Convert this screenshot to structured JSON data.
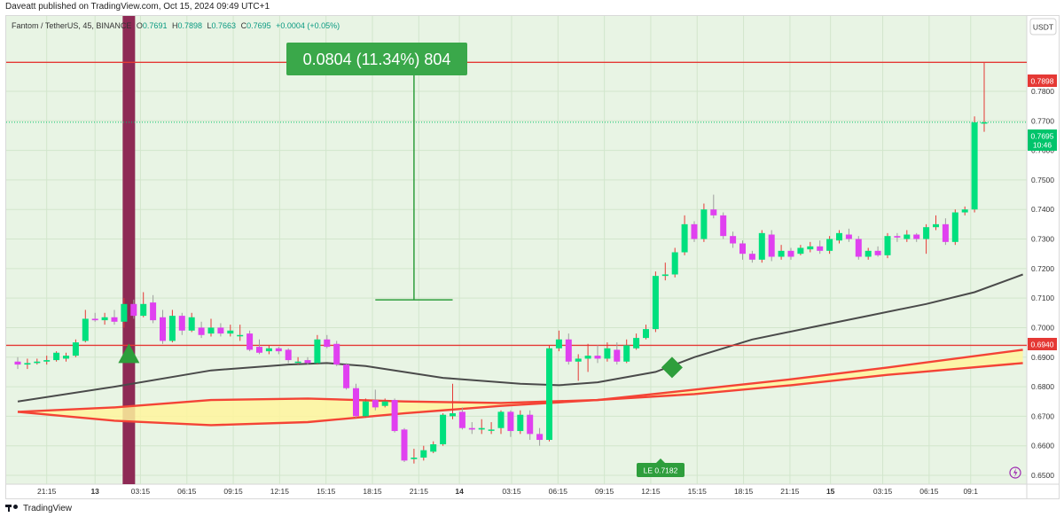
{
  "publisher_line": "Daveatt published on TradingView.com, Oct 15, 2024 09:49 UTC+1",
  "footer_brand": "TradingView",
  "header": {
    "symbol": "Fantom / TetherUS, 45, BINANCE",
    "o_label": "O",
    "o_value": "0.7691",
    "h_label": "H",
    "h_value": "0.7898",
    "l_label": "L",
    "l_value": "0.7663",
    "c_label": "C",
    "c_value": "0.7695",
    "change": "+0.0004 (+0.05%)"
  },
  "currency_label": "USDT",
  "measure_label": "0.0804 (11.34%) 804",
  "le_label": "LE 0.7182",
  "price_tags": {
    "top_line": "0.7898",
    "last_price": "0.7695",
    "countdown": "10:46",
    "bottom_line": "0.6940"
  },
  "colors": {
    "background": "#e8f4e4",
    "up": "#00e07e",
    "down": "#e040f0",
    "level_line": "#e53935",
    "ma_line": "#4a4a4a",
    "band_upper": "#f44336",
    "band_fill": "#fff59d",
    "measure": "#2e9e3c",
    "vertical_highlight": "#8e2a55",
    "signal": "#2e9e3c"
  },
  "chart_data": {
    "type": "candlestick",
    "timeframe": "45",
    "ylim": [
      0.647,
      0.8055
    ],
    "y_ticks": [
      "0.6500",
      "0.6600",
      "0.6700",
      "0.6800",
      "0.6900",
      "0.7000",
      "0.7100",
      "0.7200",
      "0.7300",
      "0.7400",
      "0.7500",
      "0.7600",
      "0.7700",
      "0.7800"
    ],
    "x_ticks": [
      "21:15",
      "13",
      "03:15",
      "06:15",
      "09:15",
      "12:15",
      "15:15",
      "18:15",
      "21:15",
      "14",
      "03:15",
      "06:15",
      "09:15",
      "12:15",
      "15:15",
      "18:15",
      "21:15",
      "15",
      "03:15",
      "06:15",
      "09:1"
    ],
    "x_tick_bars": [
      3,
      8,
      12.7,
      17.5,
      22.3,
      27.1,
      31.9,
      36.7,
      41.5,
      45.7,
      51.1,
      55.9,
      60.7,
      65.5,
      70.3,
      75.1,
      79.9,
      84.1,
      89.5,
      94.3,
      98.6
    ],
    "candles": [
      [
        0.6885,
        0.6875,
        0.69,
        0.686
      ],
      [
        0.6875,
        0.688,
        0.6895,
        0.686
      ],
      [
        0.688,
        0.6885,
        0.6895,
        0.6875
      ],
      [
        0.6885,
        0.689,
        0.6905,
        0.6875
      ],
      [
        0.689,
        0.6915,
        0.692,
        0.6885
      ],
      [
        0.6895,
        0.6905,
        0.6915,
        0.6885
      ],
      [
        0.6905,
        0.695,
        0.696,
        0.69
      ],
      [
        0.6955,
        0.703,
        0.706,
        0.695
      ],
      [
        0.703,
        0.7025,
        0.705,
        0.702
      ],
      [
        0.7025,
        0.7035,
        0.705,
        0.701
      ],
      [
        0.7035,
        0.702,
        0.706,
        0.701
      ],
      [
        0.702,
        0.708,
        0.71,
        0.7
      ],
      [
        0.708,
        0.704,
        0.7095,
        0.703
      ],
      [
        0.704,
        0.708,
        0.712,
        0.7035
      ],
      [
        0.7085,
        0.7025,
        0.711,
        0.7015
      ],
      [
        0.7035,
        0.6955,
        0.706,
        0.6945
      ],
      [
        0.6955,
        0.704,
        0.706,
        0.695
      ],
      [
        0.704,
        0.699,
        0.705,
        0.6975
      ],
      [
        0.699,
        0.7035,
        0.705,
        0.6985
      ],
      [
        0.7,
        0.6975,
        0.702,
        0.6965
      ],
      [
        0.698,
        0.7,
        0.703,
        0.697
      ],
      [
        0.7,
        0.698,
        0.7015,
        0.697
      ],
      [
        0.698,
        0.699,
        0.701,
        0.697
      ],
      [
        0.6975,
        0.6975,
        0.701,
        0.6955
      ],
      [
        0.698,
        0.6925,
        0.699,
        0.692
      ],
      [
        0.6935,
        0.6915,
        0.696,
        0.691
      ],
      [
        0.692,
        0.693,
        0.694,
        0.691
      ],
      [
        0.693,
        0.692,
        0.6935,
        0.691
      ],
      [
        0.6925,
        0.689,
        0.693,
        0.688
      ],
      [
        0.6885,
        0.6885,
        0.69,
        0.6875
      ],
      [
        0.689,
        0.688,
        0.69,
        0.6875
      ],
      [
        0.688,
        0.696,
        0.6975,
        0.6875
      ],
      [
        0.696,
        0.6935,
        0.6975,
        0.693
      ],
      [
        0.6945,
        0.6875,
        0.6955,
        0.687
      ],
      [
        0.6875,
        0.6795,
        0.688,
        0.679
      ],
      [
        0.6795,
        0.67,
        0.681,
        0.6695
      ],
      [
        0.67,
        0.675,
        0.676,
        0.6695
      ],
      [
        0.6755,
        0.673,
        0.679,
        0.672
      ],
      [
        0.6735,
        0.675,
        0.676,
        0.673
      ],
      [
        0.6755,
        0.665,
        0.676,
        0.6645
      ],
      [
        0.6655,
        0.655,
        0.666,
        0.6545
      ],
      [
        0.6555,
        0.656,
        0.659,
        0.654
      ],
      [
        0.656,
        0.6585,
        0.66,
        0.655
      ],
      [
        0.658,
        0.6605,
        0.6615,
        0.6575
      ],
      [
        0.6605,
        0.6705,
        0.671,
        0.66
      ],
      [
        0.67,
        0.671,
        0.681,
        0.669
      ],
      [
        0.6715,
        0.666,
        0.673,
        0.6655
      ],
      [
        0.666,
        0.6655,
        0.668,
        0.664
      ],
      [
        0.6655,
        0.666,
        0.669,
        0.664
      ],
      [
        0.6655,
        0.6655,
        0.668,
        0.664
      ],
      [
        0.666,
        0.6715,
        0.672,
        0.664
      ],
      [
        0.6715,
        0.665,
        0.672,
        0.663
      ],
      [
        0.665,
        0.6705,
        0.672,
        0.664
      ],
      [
        0.6705,
        0.664,
        0.672,
        0.662
      ],
      [
        0.664,
        0.662,
        0.666,
        0.66
      ],
      [
        0.662,
        0.693,
        0.694,
        0.6615
      ],
      [
        0.693,
        0.696,
        0.699,
        0.692
      ],
      [
        0.696,
        0.6885,
        0.698,
        0.6875
      ],
      [
        0.6885,
        0.6895,
        0.691,
        0.682
      ],
      [
        0.6895,
        0.6905,
        0.6945,
        0.685
      ],
      [
        0.6905,
        0.6895,
        0.694,
        0.688
      ],
      [
        0.6895,
        0.693,
        0.695,
        0.6885
      ],
      [
        0.6925,
        0.6885,
        0.695,
        0.6875
      ],
      [
        0.6885,
        0.694,
        0.696,
        0.688
      ],
      [
        0.693,
        0.6965,
        0.698,
        0.6925
      ],
      [
        0.6965,
        0.6995,
        0.701,
        0.696
      ],
      [
        0.6995,
        0.7175,
        0.719,
        0.6985
      ],
      [
        0.7175,
        0.718,
        0.722,
        0.716
      ],
      [
        0.718,
        0.7255,
        0.727,
        0.717
      ],
      [
        0.7255,
        0.735,
        0.738,
        0.7245
      ],
      [
        0.735,
        0.73,
        0.736,
        0.729
      ],
      [
        0.73,
        0.74,
        0.742,
        0.729
      ],
      [
        0.74,
        0.738,
        0.745,
        0.737
      ],
      [
        0.738,
        0.731,
        0.739,
        0.73
      ],
      [
        0.731,
        0.7285,
        0.7325,
        0.727
      ],
      [
        0.7285,
        0.725,
        0.7295,
        0.723
      ],
      [
        0.725,
        0.723,
        0.726,
        0.722
      ],
      [
        0.723,
        0.732,
        0.733,
        0.722
      ],
      [
        0.7315,
        0.724,
        0.733,
        0.7225
      ],
      [
        0.724,
        0.726,
        0.728,
        0.723
      ],
      [
        0.726,
        0.724,
        0.727,
        0.723
      ],
      [
        0.725,
        0.727,
        0.728,
        0.7245
      ],
      [
        0.7265,
        0.7275,
        0.729,
        0.7255
      ],
      [
        0.7275,
        0.726,
        0.7295,
        0.725
      ],
      [
        0.726,
        0.73,
        0.731,
        0.725
      ],
      [
        0.7295,
        0.732,
        0.733,
        0.7285
      ],
      [
        0.7315,
        0.73,
        0.7335,
        0.729
      ],
      [
        0.73,
        0.724,
        0.731,
        0.723
      ],
      [
        0.724,
        0.726,
        0.727,
        0.723
      ],
      [
        0.726,
        0.7245,
        0.7275,
        0.724
      ],
      [
        0.7245,
        0.731,
        0.732,
        0.7235
      ],
      [
        0.731,
        0.7305,
        0.732,
        0.729
      ],
      [
        0.73,
        0.7315,
        0.733,
        0.729
      ],
      [
        0.7315,
        0.73,
        0.732,
        0.729
      ],
      [
        0.73,
        0.734,
        0.735,
        0.725
      ],
      [
        0.734,
        0.735,
        0.738,
        0.733
      ],
      [
        0.735,
        0.729,
        0.737,
        0.728
      ],
      [
        0.729,
        0.739,
        0.74,
        0.728
      ],
      [
        0.739,
        0.74,
        0.741,
        0.738
      ],
      [
        0.74,
        0.7695,
        0.7715,
        0.739
      ],
      [
        0.7691,
        0.7695,
        0.7898,
        0.7663
      ]
    ],
    "ma_line": [
      [
        0,
        0.675
      ],
      [
        10,
        0.68
      ],
      [
        20,
        0.6855
      ],
      [
        28,
        0.6875
      ],
      [
        32,
        0.688
      ],
      [
        36,
        0.687
      ],
      [
        44,
        0.683
      ],
      [
        52,
        0.681
      ],
      [
        56,
        0.6805
      ],
      [
        60,
        0.6815
      ],
      [
        66,
        0.685
      ],
      [
        70,
        0.69
      ],
      [
        76,
        0.696
      ],
      [
        82,
        0.7
      ],
      [
        88,
        0.704
      ],
      [
        94,
        0.708
      ],
      [
        99,
        0.712
      ],
      [
        104,
        0.718
      ]
    ],
    "band_upper": [
      [
        0,
        0.6715
      ],
      [
        10,
        0.673
      ],
      [
        20,
        0.6755
      ],
      [
        30,
        0.676
      ],
      [
        40,
        0.675
      ],
      [
        50,
        0.6745
      ],
      [
        60,
        0.6755
      ],
      [
        70,
        0.679
      ],
      [
        80,
        0.6825
      ],
      [
        90,
        0.6865
      ],
      [
        104,
        0.6925
      ]
    ],
    "band_lower": [
      [
        0,
        0.6715
      ],
      [
        10,
        0.6685
      ],
      [
        20,
        0.667
      ],
      [
        30,
        0.668
      ],
      [
        40,
        0.671
      ],
      [
        50,
        0.6735
      ],
      [
        60,
        0.6755
      ],
      [
        70,
        0.6775
      ],
      [
        80,
        0.6805
      ],
      [
        90,
        0.684
      ],
      [
        104,
        0.688
      ]
    ],
    "levels": [
      0.7898,
      0.694
    ],
    "last_price": 0.7695,
    "vertical_highlight_bar": 11.5,
    "measure": {
      "from_bar": 37,
      "to_bar": 45,
      "from_price": 0.7094,
      "to_price": 0.7898
    },
    "up_signal": {
      "bar": 11.5,
      "price": 0.691
    },
    "diamond_signal": {
      "bar": 67.7,
      "price": 0.6865
    },
    "le_marker_bar": 67.7
  }
}
